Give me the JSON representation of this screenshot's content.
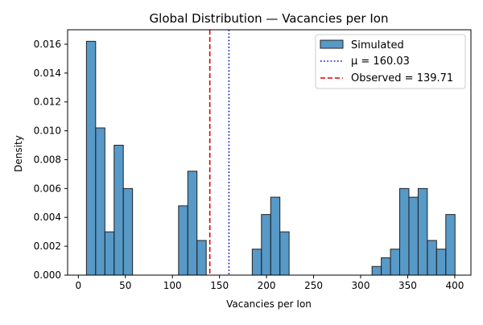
{
  "chart_data": {
    "type": "bar",
    "title": "Global Distribution — Vacancies per Ion",
    "xlabel": "Vacancies per Ion",
    "ylabel": "Density",
    "xlim": [
      -11.4,
      417.2
    ],
    "ylim": [
      0,
      0.017
    ],
    "x_ticks": [
      "0",
      "50",
      "100",
      "150",
      "200",
      "250",
      "300",
      "350",
      "400"
    ],
    "y_ticks": [
      "0.000",
      "0.002",
      "0.004",
      "0.006",
      "0.008",
      "0.010",
      "0.012",
      "0.014",
      "0.016"
    ],
    "bin_width": 9.79,
    "series": [
      {
        "name": "Simulated",
        "color": "#1f77b4",
        "bins": [
          {
            "x0": 8.6,
            "value": 0.0162
          },
          {
            "x0": 18.4,
            "value": 0.0102
          },
          {
            "x0": 28.2,
            "value": 0.003
          },
          {
            "x0": 38.0,
            "value": 0.009
          },
          {
            "x0": 47.8,
            "value": 0.006
          },
          {
            "x0": 106.5,
            "value": 0.0048
          },
          {
            "x0": 116.3,
            "value": 0.0072
          },
          {
            "x0": 126.1,
            "value": 0.0024
          },
          {
            "x0": 184.8,
            "value": 0.0018
          },
          {
            "x0": 194.6,
            "value": 0.0042
          },
          {
            "x0": 204.4,
            "value": 0.0054
          },
          {
            "x0": 214.2,
            "value": 0.003
          },
          {
            "x0": 312.1,
            "value": 0.0006
          },
          {
            "x0": 321.9,
            "value": 0.0012
          },
          {
            "x0": 331.7,
            "value": 0.0018
          },
          {
            "x0": 341.5,
            "value": 0.006
          },
          {
            "x0": 351.3,
            "value": 0.0054
          },
          {
            "x0": 361.1,
            "value": 0.006
          },
          {
            "x0": 370.9,
            "value": 0.0024
          },
          {
            "x0": 380.7,
            "value": 0.0018
          },
          {
            "x0": 390.5,
            "value": 0.0042
          }
        ]
      }
    ],
    "reference_lines": [
      {
        "name": "μ = 160.03",
        "x": 160.03,
        "color": "#0000cc",
        "style": "dotted"
      },
      {
        "name": "Observed = 139.71",
        "x": 139.71,
        "color": "#dd0000",
        "style": "dashed"
      }
    ],
    "legend": {
      "position": "top-right",
      "entries": [
        "Simulated",
        "μ = 160.03",
        "Observed = 139.71"
      ]
    },
    "grid": false
  }
}
